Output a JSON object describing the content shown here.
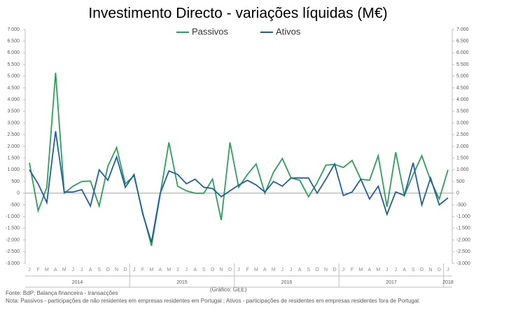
{
  "chart_data": {
    "type": "line",
    "title": "Investimento Directo - variações líquidas (M€)",
    "categories": [
      "J",
      "F",
      "M",
      "A",
      "M",
      "J",
      "J",
      "A",
      "S",
      "O",
      "N",
      "D",
      "J",
      "F",
      "M",
      "A",
      "M",
      "J",
      "J",
      "A",
      "S",
      "O",
      "N",
      "D",
      "J",
      "F",
      "M",
      "A",
      "M",
      "J",
      "J",
      "A",
      "S",
      "O",
      "N",
      "D",
      "J",
      "F",
      "M",
      "A",
      "M",
      "J",
      "J",
      "A",
      "S",
      "O",
      "N",
      "D",
      "J"
    ],
    "years": [
      "2014",
      "2015",
      "2016",
      "2017",
      "2018"
    ],
    "series": [
      {
        "name": "Passivos",
        "color": "#2ca05a",
        "values": [
          1300,
          -750,
          250,
          5150,
          0,
          300,
          500,
          520,
          -550,
          1150,
          1950,
          400,
          750,
          -850,
          -2250,
          -50,
          2170,
          300,
          100,
          0,
          0,
          600,
          -1150,
          2170,
          250,
          800,
          1250,
          0,
          900,
          1480,
          650,
          550,
          -150,
          450,
          1200,
          1230,
          1100,
          1400,
          600,
          550,
          1600,
          -580,
          1750,
          -100,
          800,
          1600,
          550,
          -250,
          1000
        ]
      },
      {
        "name": "Ativos",
        "color": "#1f5f9e",
        "values": [
          1000,
          400,
          -400,
          2650,
          50,
          50,
          150,
          -550,
          1000,
          550,
          1550,
          250,
          800,
          -900,
          -2100,
          0,
          950,
          800,
          400,
          600,
          250,
          200,
          -150,
          100,
          350,
          550,
          350,
          50,
          500,
          300,
          650,
          650,
          650,
          0,
          600,
          1250,
          -100,
          50,
          600,
          -250,
          300,
          -900,
          50,
          -100,
          1300,
          -500,
          650,
          -500,
          -200
        ]
      }
    ],
    "ylim": [
      -3000,
      7000
    ],
    "yticks": [
      {
        "value": -3000,
        "label": "-3.000"
      },
      {
        "value": -2500,
        "label": "-2.500"
      },
      {
        "value": -2000,
        "label": "-2.000"
      },
      {
        "value": -1500,
        "label": "-1.500"
      },
      {
        "value": -1000,
        "label": "-1.000"
      },
      -500,
      0,
      500,
      {
        "value": 1000,
        "label": "1.000"
      },
      {
        "value": 1500,
        "label": "1.500"
      },
      {
        "value": 2000,
        "label": "2.000"
      },
      {
        "value": 2500,
        "label": "2.500"
      },
      {
        "value": 3000,
        "label": "3.000"
      },
      {
        "value": 3500,
        "label": "3.500"
      },
      {
        "value": 4000,
        "label": "4.000"
      },
      {
        "value": 4500,
        "label": "4.500"
      },
      {
        "value": 5000,
        "label": "5.000"
      },
      {
        "value": 5500,
        "label": "5.500"
      },
      {
        "value": 6000,
        "label": "6.000"
      },
      {
        "value": 6500,
        "label": "6.500"
      },
      {
        "value": 7000,
        "label": "7.000"
      }
    ],
    "source": "Fonte: BdP; Balança financeira - transacções",
    "credit": "(Gráfico: GEE)",
    "note": "Nota: Passivos - participações de não residentes em empresas residentes em Portugal ; Ativos - participações de residentes em empresas residentes fora de Portugal."
  }
}
